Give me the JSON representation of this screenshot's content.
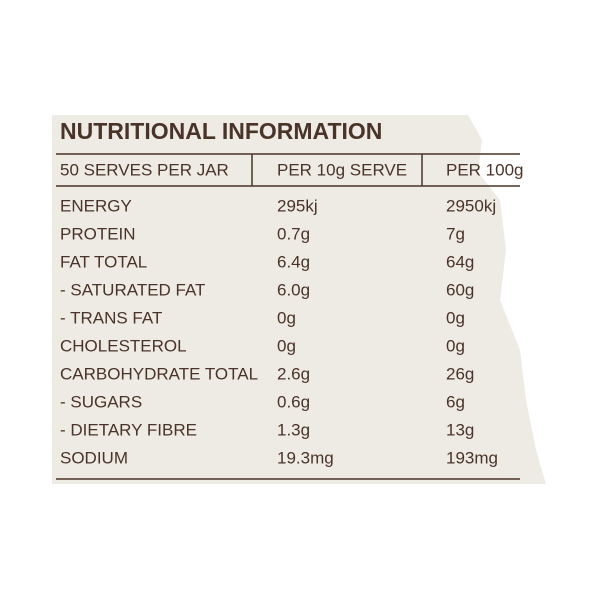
{
  "title": "NUTRITIONAL INFORMATION",
  "table": {
    "header": [
      "50 SERVES PER JAR",
      "PER 10g SERVE",
      "PER 100g"
    ],
    "rows": [
      [
        "ENERGY",
        "295kj",
        "2950kj"
      ],
      [
        "PROTEIN",
        "0.7g",
        "7g"
      ],
      [
        "FAT TOTAL",
        "6.4g",
        "64g"
      ],
      [
        "- SATURATED FAT",
        "6.0g",
        "60g"
      ],
      [
        "- TRANS FAT",
        "0g",
        "0g"
      ],
      [
        "CHOLESTEROL",
        "0g",
        "0g"
      ],
      [
        "CARBOHYDRATE TOTAL",
        "2.6g",
        "26g"
      ],
      [
        "- SUGARS",
        "0.6g",
        "6g"
      ],
      [
        "- DIETARY FIBRE",
        "1.3g",
        "13g"
      ],
      [
        "SODIUM",
        "19.3mg",
        "193mg"
      ]
    ]
  }
}
